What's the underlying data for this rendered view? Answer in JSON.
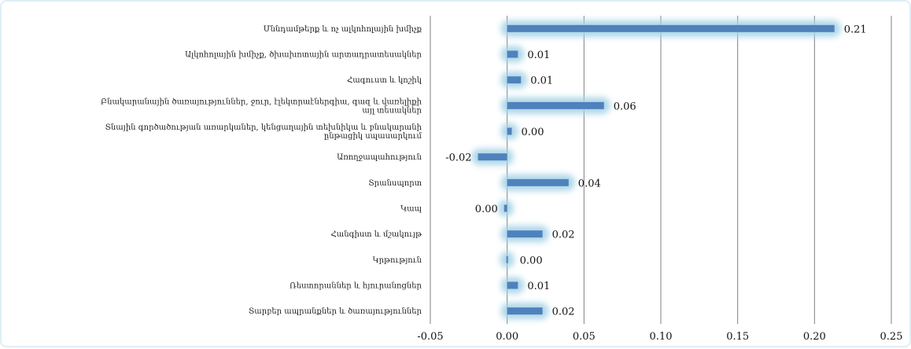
{
  "chart_data": {
    "type": "bar",
    "orientation": "horizontal",
    "categories": [
      "Մննդամթերք և ոչ ալկոհոլային խմիչք",
      "Ալկոհոլային խմիչք, ծխախոտային արտադրատեսակներ",
      "Հագուստ և կոշիկ",
      "Բնակարանային ծառայություններ, ջուր, էլեկտրաէներգիա, գազ և վառելիքի այլ տեսակներ",
      "Տնային գործածության առարկաներ, կենցաղային տեխնիկա և բնակարանի ընթացիկ սպասարկում",
      "Առողջապահություն",
      "Տրանսպորտ",
      "Կապ",
      "Հանգիստ և մշակույթ",
      "Կրթություն",
      "Ռեստորաններ և հյուրանոցներ",
      "Տարբեր ապրանքներ և ծառայություններ"
    ],
    "values": [
      0.21,
      0.01,
      0.01,
      0.06,
      0.0,
      -0.02,
      0.04,
      0.0,
      0.02,
      0.0,
      0.01,
      0.02
    ],
    "bar_values_estimated": [
      0.213,
      0.007,
      0.009,
      0.063,
      0.003,
      -0.019,
      0.04,
      -0.002,
      0.023,
      0.0,
      0.007,
      0.023
    ],
    "data_labels": [
      "0.21",
      "0.01",
      "0.01",
      "0.06",
      "0.00",
      "-0.02",
      "0.04",
      "0.00",
      "0.02",
      "0.00",
      "0.01",
      "0.02"
    ],
    "x_ticks": [
      -0.05,
      0.0,
      0.05,
      0.1,
      0.15,
      0.2,
      0.25
    ],
    "x_tick_labels": [
      "-0.05",
      "0.00",
      "0.05",
      "0.10",
      "0.15",
      "0.20",
      "0.25"
    ],
    "xlim": [
      -0.05,
      0.25
    ],
    "grid": "vertical",
    "legend": "none",
    "title": "",
    "xlabel": "",
    "ylabel": "",
    "colors": {
      "bar": "#4f81bd",
      "glow": "#a6d3e6",
      "grid": "#7f7f7f",
      "zero_line": "#7f7f7f",
      "frame": "#dfeff7"
    }
  }
}
